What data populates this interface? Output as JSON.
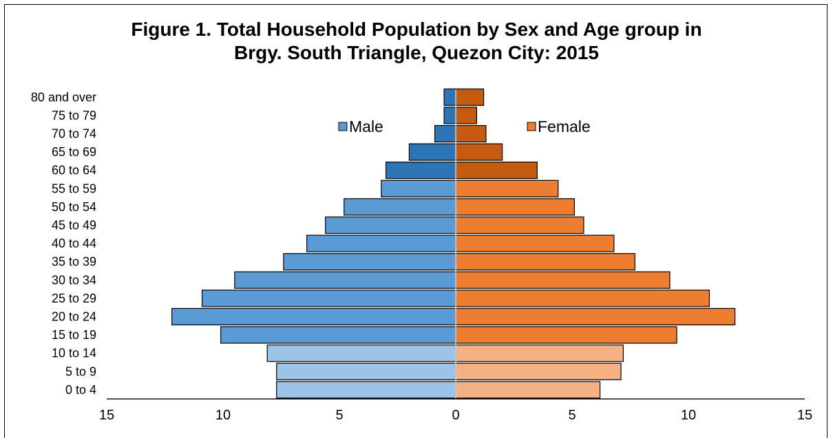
{
  "chart_data": {
    "type": "bar",
    "orientation": "horizontal",
    "subtype": "population-pyramid",
    "title_line1": "Figure 1. Total Household Population by Sex and Age group in",
    "title_line2": "Brgy. South Triangle, Quezon City: 2015",
    "categories": [
      "0 to 4",
      "5 to 9",
      "10 to 14",
      "15 to 19",
      "20 to 24",
      "25 to 29",
      "30 to 34",
      "35 to 39",
      "40 to 44",
      "45 to 49",
      "50 to 54",
      "55 to 59",
      "60 to 64",
      "65 to 69",
      "70 to 74",
      "75 to 79",
      "80 and over"
    ],
    "series": [
      {
        "name": "Male",
        "values": [
          7.7,
          7.7,
          8.1,
          10.1,
          12.2,
          10.9,
          9.5,
          7.4,
          6.4,
          5.6,
          4.8,
          3.2,
          3.0,
          2.0,
          0.9,
          0.5,
          0.5
        ],
        "colors": [
          "#9dc3e6",
          "#9dc3e6",
          "#9dc3e6",
          "#5b9bd5",
          "#5b9bd5",
          "#5b9bd5",
          "#5b9bd5",
          "#5b9bd5",
          "#5b9bd5",
          "#5b9bd5",
          "#5b9bd5",
          "#5b9bd5",
          "#2e75b6",
          "#2e75b6",
          "#2e75b6",
          "#2e75b6",
          "#2e75b6"
        ]
      },
      {
        "name": "Female",
        "values": [
          6.2,
          7.1,
          7.2,
          9.5,
          12.0,
          10.9,
          9.2,
          7.7,
          6.8,
          5.5,
          5.1,
          4.4,
          3.5,
          2.0,
          1.3,
          0.9,
          1.2
        ],
        "colors": [
          "#f4b183",
          "#f4b183",
          "#f4b183",
          "#ed7d31",
          "#ed7d31",
          "#ed7d31",
          "#ed7d31",
          "#ed7d31",
          "#ed7d31",
          "#ed7d31",
          "#ed7d31",
          "#ed7d31",
          "#c55a11",
          "#c55a11",
          "#c55a11",
          "#c55a11",
          "#c55a11"
        ]
      }
    ],
    "xlim": [
      -15,
      15
    ],
    "x_ticks": [
      -15,
      -10,
      -5,
      0,
      5,
      10,
      15
    ],
    "x_tick_labels": [
      "15",
      "10",
      "5",
      "0",
      "5",
      "10",
      "15"
    ],
    "legend": {
      "placement": "top-center",
      "items": [
        {
          "label": "Male",
          "color": "#5b9bd5"
        },
        {
          "label": "Female",
          "color": "#ed7d31"
        }
      ]
    },
    "grid": false
  }
}
